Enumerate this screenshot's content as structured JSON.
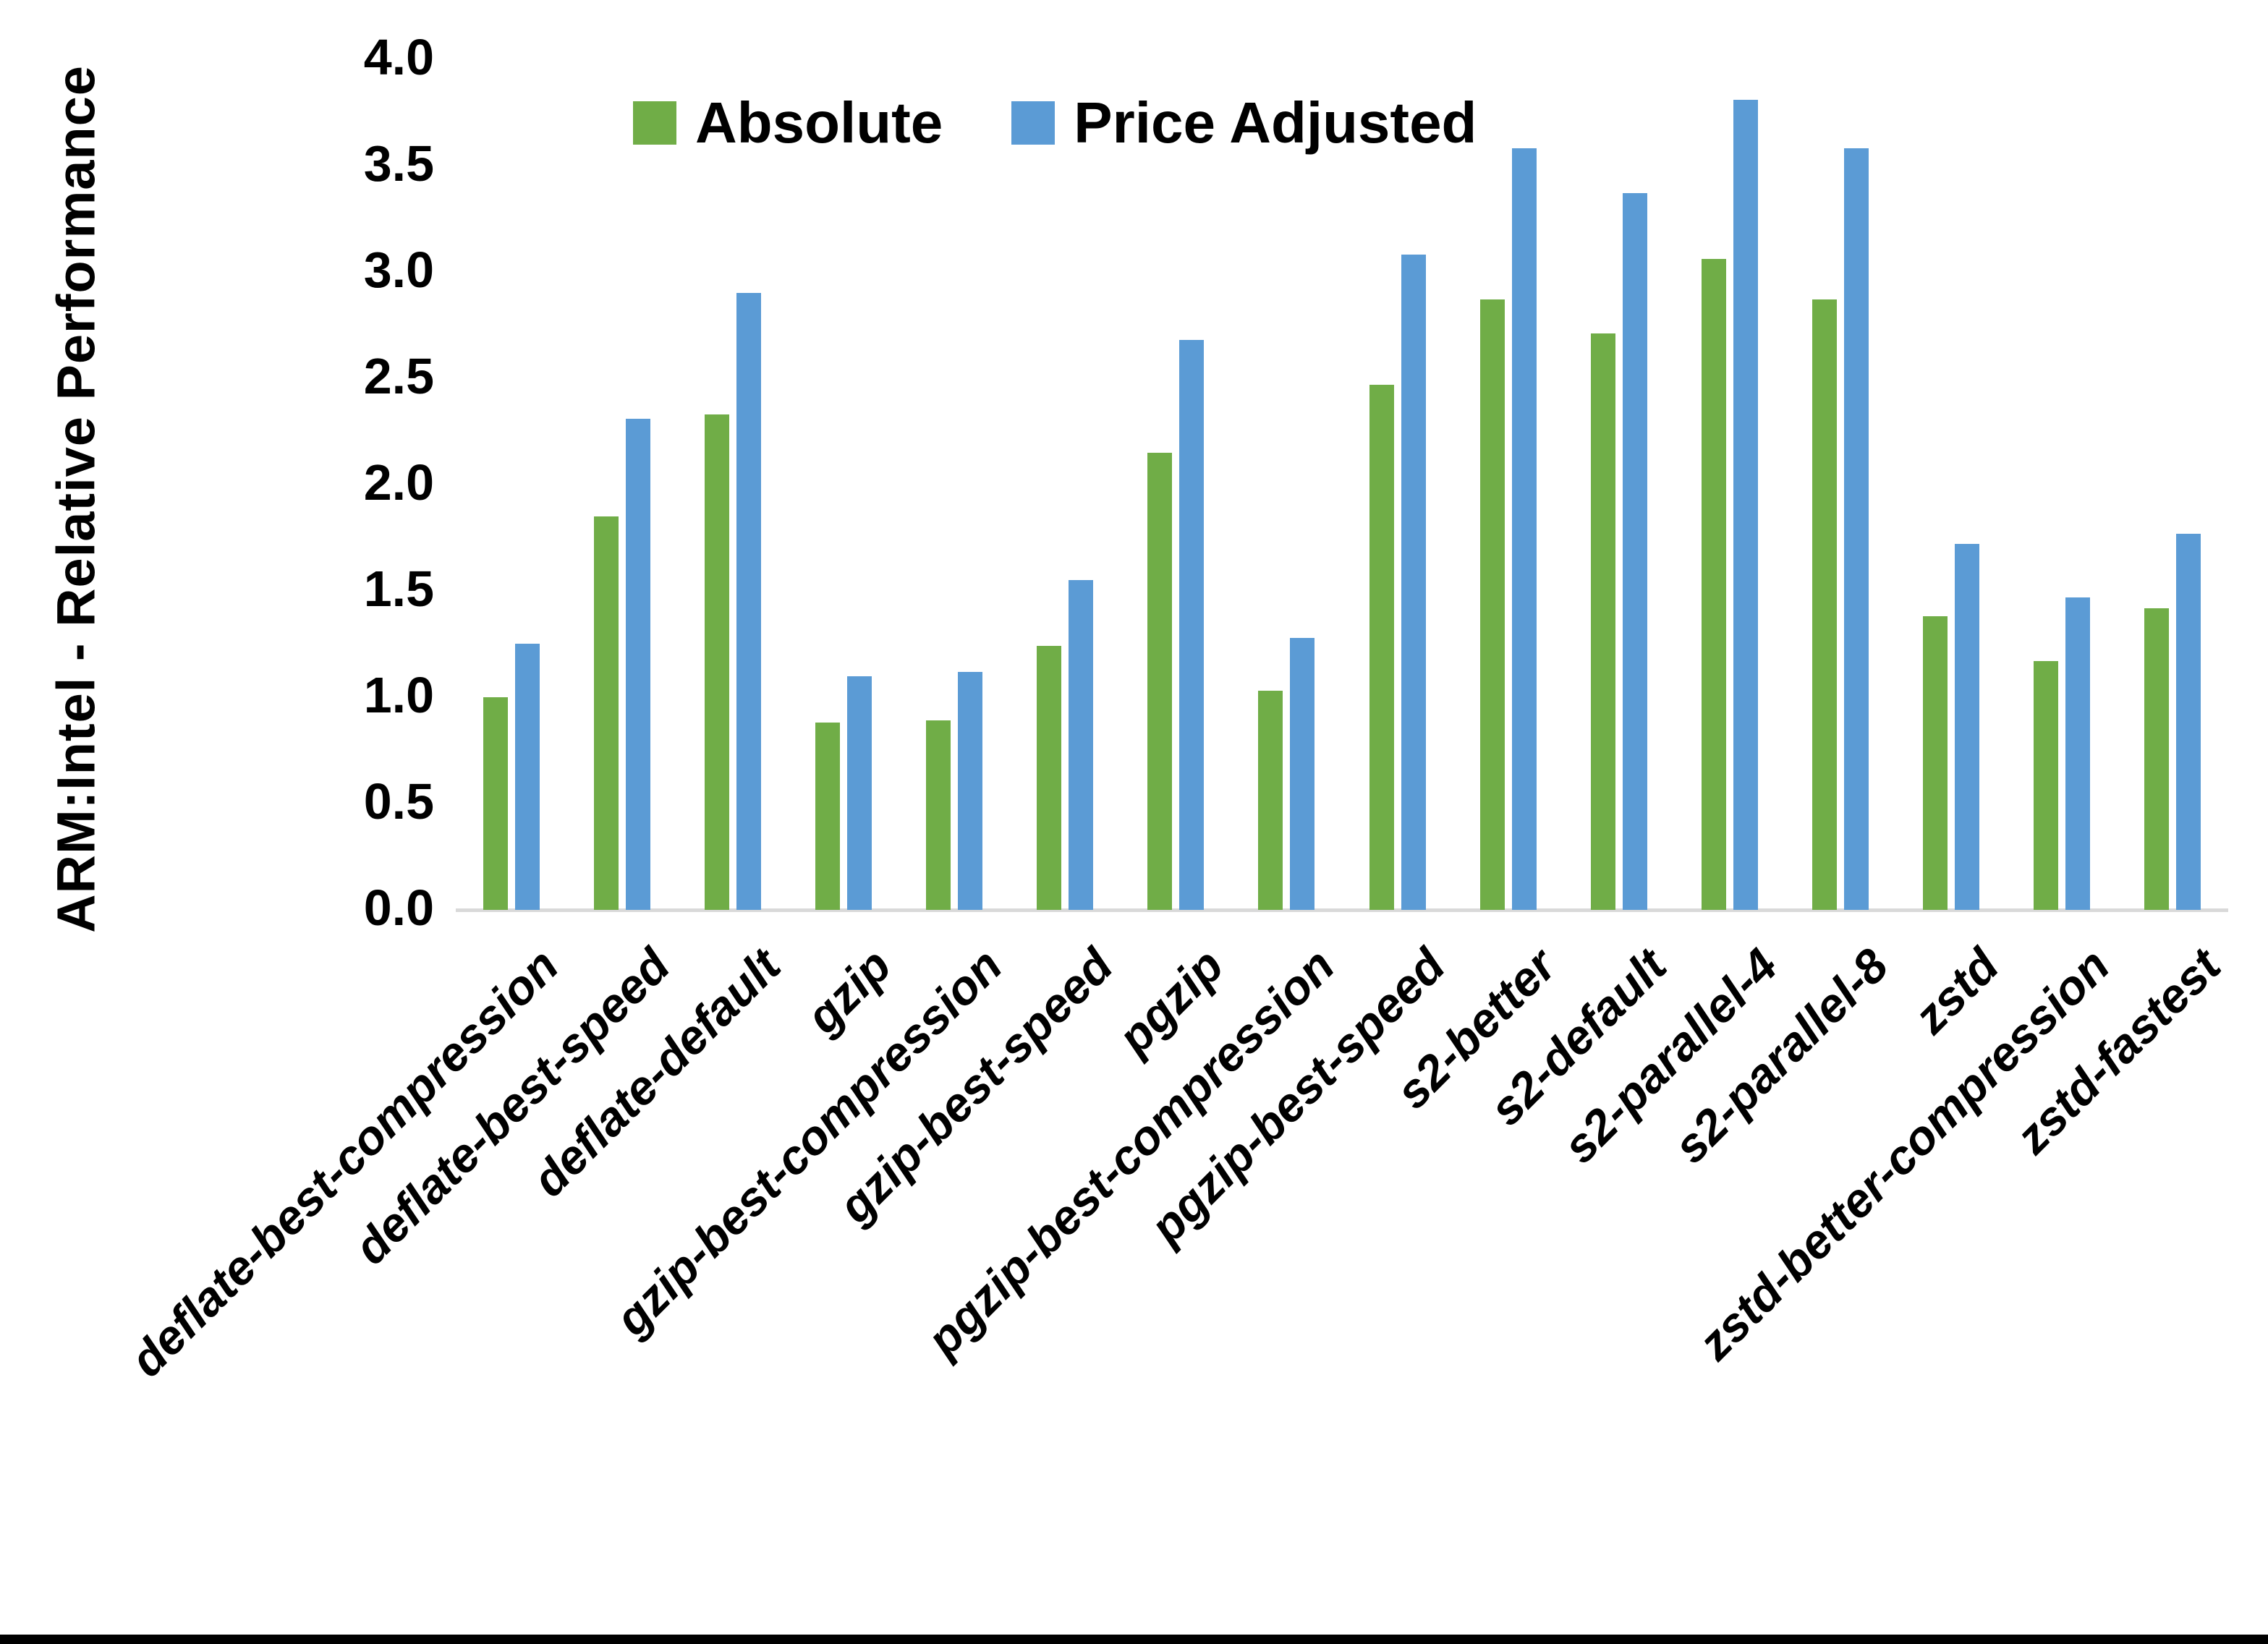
{
  "chart_data": {
    "type": "bar",
    "title": "",
    "xlabel": "",
    "ylabel": "ARM:Intel - Relative Performance",
    "ylim": [
      0.0,
      4.0
    ],
    "ytick_step": 0.5,
    "ytick_labels": [
      "0.0",
      "0.5",
      "1.0",
      "1.5",
      "2.0",
      "2.5",
      "3.0",
      "3.5",
      "4.0"
    ],
    "grid": false,
    "legend_position": "top-center",
    "categories": [
      "deflate-best-compression",
      "deflate-best-speed",
      "deflate-default",
      "gzip",
      "gzip-best-compression",
      "gzip-best-speed",
      "pgzip",
      "pgzip-best-compression",
      "pgzip-best-speed",
      "s2-better",
      "s2-default",
      "s2-parallel-4",
      "s2-parallel-8",
      "zstd",
      "zstd-better-compression",
      "zstd-fastest"
    ],
    "series": [
      {
        "name": "Absolute",
        "color": "#70AD47",
        "values": [
          1.0,
          1.85,
          2.33,
          0.88,
          0.89,
          1.24,
          2.15,
          1.03,
          2.47,
          2.87,
          2.71,
          3.06,
          2.87,
          1.38,
          1.17,
          1.42
        ]
      },
      {
        "name": "Price Adjusted",
        "color": "#5B9BD5",
        "values": [
          1.25,
          2.31,
          2.9,
          1.1,
          1.12,
          1.55,
          2.68,
          1.28,
          3.08,
          3.58,
          3.37,
          3.81,
          3.58,
          1.72,
          1.47,
          1.77
        ]
      }
    ]
  },
  "colors": {
    "background": "#FFFFFF",
    "axis_line": "#D9D9D9",
    "text": "#000000",
    "bottom_border": "#000000"
  }
}
